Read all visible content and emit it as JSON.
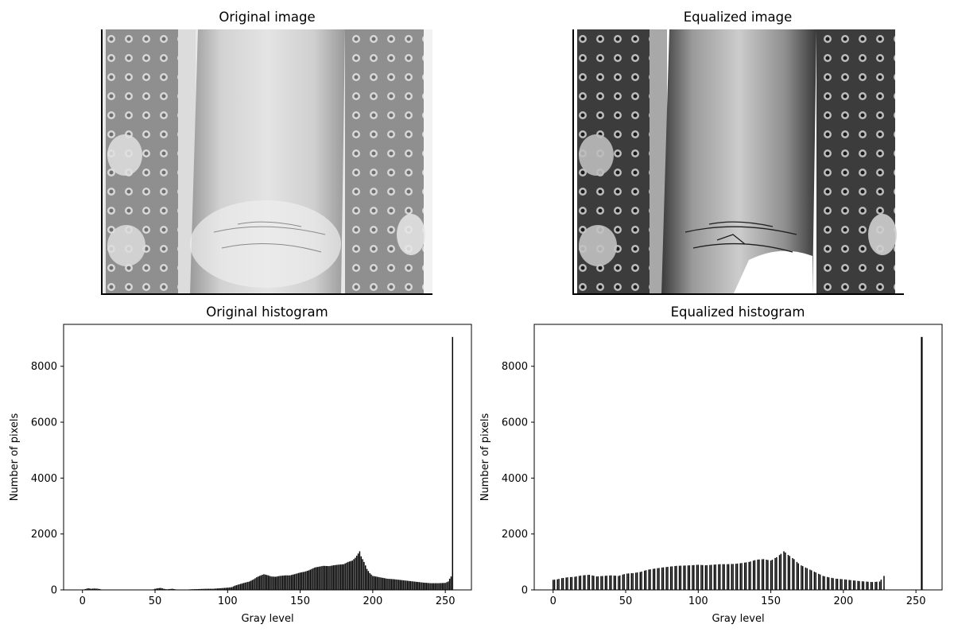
{
  "titles": {
    "original_image": "Original image",
    "equalized_image": "Equalized image",
    "original_histogram": "Original histogram",
    "equalized_histogram": "Equalized histogram"
  },
  "chart_data": [
    {
      "type": "bar",
      "title": "Original histogram",
      "xlabel": "Gray level",
      "ylabel": "Number of pixels",
      "xlim": [
        -13,
        268
      ],
      "ylim": [
        0,
        9500
      ],
      "xticks": [
        0,
        50,
        100,
        150,
        200,
        250
      ],
      "yticks": [
        0,
        2000,
        4000,
        6000,
        8000
      ],
      "anchors": [
        [
          0,
          0
        ],
        [
          2,
          30
        ],
        [
          4,
          60
        ],
        [
          6,
          40
        ],
        [
          8,
          50
        ],
        [
          10,
          45
        ],
        [
          12,
          30
        ],
        [
          14,
          0
        ],
        [
          48,
          0
        ],
        [
          50,
          40
        ],
        [
          52,
          60
        ],
        [
          54,
          70
        ],
        [
          56,
          40
        ],
        [
          58,
          20
        ],
        [
          60,
          30
        ],
        [
          62,
          40
        ],
        [
          64,
          20
        ],
        [
          66,
          10
        ],
        [
          70,
          0
        ],
        [
          74,
          20
        ],
        [
          80,
          30
        ],
        [
          85,
          40
        ],
        [
          90,
          40
        ],
        [
          95,
          60
        ],
        [
          100,
          80
        ],
        [
          103,
          100
        ],
        [
          105,
          150
        ],
        [
          108,
          200
        ],
        [
          112,
          260
        ],
        [
          115,
          300
        ],
        [
          118,
          380
        ],
        [
          120,
          450
        ],
        [
          122,
          500
        ],
        [
          125,
          560
        ],
        [
          128,
          520
        ],
        [
          130,
          480
        ],
        [
          133,
          470
        ],
        [
          136,
          500
        ],
        [
          140,
          520
        ],
        [
          143,
          520
        ],
        [
          146,
          560
        ],
        [
          150,
          620
        ],
        [
          153,
          650
        ],
        [
          156,
          700
        ],
        [
          160,
          800
        ],
        [
          163,
          830
        ],
        [
          166,
          860
        ],
        [
          170,
          850
        ],
        [
          173,
          880
        ],
        [
          176,
          900
        ],
        [
          180,
          920
        ],
        [
          183,
          1000
        ],
        [
          186,
          1050
        ],
        [
          188,
          1150
        ],
        [
          190,
          1300
        ],
        [
          191,
          1380
        ],
        [
          192,
          1200
        ],
        [
          194,
          1000
        ],
        [
          196,
          750
        ],
        [
          198,
          600
        ],
        [
          200,
          500
        ],
        [
          205,
          450
        ],
        [
          210,
          400
        ],
        [
          215,
          380
        ],
        [
          220,
          350
        ],
        [
          225,
          320
        ],
        [
          230,
          290
        ],
        [
          235,
          260
        ],
        [
          240,
          240
        ],
        [
          245,
          240
        ],
        [
          250,
          250
        ],
        [
          252,
          300
        ],
        [
          253,
          400
        ],
        [
          254,
          480
        ],
        [
          255,
          9050
        ]
      ]
    },
    {
      "type": "bar",
      "title": "Equalized histogram",
      "xlabel": "Gray level",
      "ylabel": "Number of pixels",
      "xlim": [
        -13,
        268
      ],
      "ylim": [
        0,
        9500
      ],
      "xticks": [
        0,
        50,
        100,
        150,
        200,
        250
      ],
      "yticks": [
        0,
        2000,
        4000,
        6000,
        8000
      ],
      "anchors": [
        [
          0,
          360
        ],
        [
          3,
          380
        ],
        [
          6,
          420
        ],
        [
          10,
          450
        ],
        [
          15,
          470
        ],
        [
          20,
          520
        ],
        [
          25,
          540
        ],
        [
          30,
          480
        ],
        [
          35,
          500
        ],
        [
          40,
          520
        ],
        [
          45,
          500
        ],
        [
          50,
          580
        ],
        [
          55,
          600
        ],
        [
          60,
          640
        ],
        [
          65,
          720
        ],
        [
          70,
          760
        ],
        [
          75,
          800
        ],
        [
          80,
          830
        ],
        [
          85,
          860
        ],
        [
          90,
          870
        ],
        [
          95,
          880
        ],
        [
          100,
          900
        ],
        [
          105,
          880
        ],
        [
          110,
          900
        ],
        [
          115,
          920
        ],
        [
          120,
          920
        ],
        [
          125,
          930
        ],
        [
          130,
          960
        ],
        [
          135,
          1000
        ],
        [
          140,
          1080
        ],
        [
          145,
          1100
        ],
        [
          150,
          1050
        ],
        [
          155,
          1200
        ],
        [
          159,
          1380
        ],
        [
          162,
          1250
        ],
        [
          166,
          1100
        ],
        [
          170,
          900
        ],
        [
          174,
          800
        ],
        [
          178,
          700
        ],
        [
          182,
          600
        ],
        [
          186,
          500
        ],
        [
          190,
          450
        ],
        [
          195,
          400
        ],
        [
          200,
          380
        ],
        [
          205,
          350
        ],
        [
          210,
          320
        ],
        [
          215,
          300
        ],
        [
          220,
          280
        ],
        [
          225,
          300
        ],
        [
          228,
          500
        ]
      ],
      "spike": [
        254,
        9050
      ]
    }
  ]
}
